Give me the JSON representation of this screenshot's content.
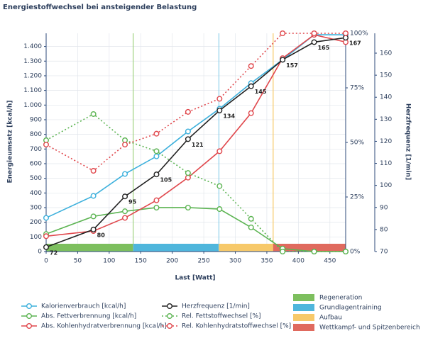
{
  "chart_data": {
    "type": "line",
    "title": "Energiestoffwechsel bei ansteigender Belastung",
    "x_label": "Last [Watt]",
    "y_label": "Energieumsatz [kcal/h]",
    "y3_label": "Herzfrequenz [1/min]",
    "x": [
      0,
      75,
      125,
      175,
      225,
      275,
      325,
      375,
      425,
      475
    ],
    "xlim": [
      0,
      475
    ],
    "xticks": [
      0,
      50,
      100,
      150,
      200,
      250,
      300,
      350,
      400,
      450
    ],
    "ylim": [
      0,
      1490
    ],
    "yticks": [
      0,
      100,
      200,
      300,
      400,
      500,
      600,
      700,
      800,
      900,
      {
        "value": 1000,
        "label": "1.000"
      },
      {
        "value": 1100,
        "label": "1.100"
      },
      {
        "value": 1200,
        "label": "1.200"
      },
      {
        "value": 1300,
        "label": "1.300"
      },
      {
        "value": 1400,
        "label": "1.400"
      }
    ],
    "y2lim": [
      0,
      100
    ],
    "y2ticks": [
      {
        "value": 0,
        "label": "0%"
      },
      {
        "value": 25,
        "label": "25%"
      },
      {
        "value": 50,
        "label": "50%"
      },
      {
        "value": 75,
        "label": "75%"
      },
      {
        "value": 100,
        "label": "100%"
      }
    ],
    "y3lim": [
      70,
      169
    ],
    "y3ticks": [
      70,
      80,
      90,
      100,
      110,
      120,
      130,
      140,
      150,
      160
    ],
    "series": [
      {
        "name": "Kalorienverbrauch [kcal/h]",
        "color": "#3cb0dc",
        "values": [
          230,
          380,
          530,
          650,
          820,
          975,
          1150,
          1310,
          1480,
          1480
        ]
      },
      {
        "name": "Abs. Fettverbrennung [kcal/h]",
        "color": "#5cb452",
        "values": [
          120,
          240,
          275,
          300,
          300,
          290,
          165,
          20,
          0,
          0
        ]
      },
      {
        "name": "Abs. Kohlenhydratverbrennung [kcal/h]",
        "color": "#e0474c",
        "values": [
          105,
          140,
          230,
          350,
          505,
          685,
          945,
          1320,
          1480,
          1430
        ]
      },
      {
        "name": "Herzfrequenz [1/min]",
        "color": "#222222",
        "axis": "y3",
        "labels": true,
        "values": [
          72,
          80,
          95,
          105,
          121,
          134,
          145,
          157,
          165,
          167
        ]
      },
      {
        "name": "Rel. Fettstoffwechsel [%]",
        "color": "#5cb452",
        "axis": "y2",
        "dashed": true,
        "values": [
          51,
          63,
          51,
          46,
          36,
          30,
          15,
          0,
          0,
          0
        ]
      },
      {
        "name": "Rel. Kohlenhydratstoffwechsel [%]",
        "color": "#e0474c",
        "axis": "y2",
        "dashed": true,
        "values": [
          49,
          37,
          49,
          54,
          64,
          70,
          85,
          100,
          100,
          100
        ]
      }
    ],
    "zones": [
      {
        "name": "Regeneration",
        "color": "#7dbf5e",
        "line": "#9fd27f",
        "from": 0,
        "to": 138
      },
      {
        "name": "Grundlagentraining",
        "color": "#4fb6dc",
        "line": "#8fd0ea",
        "from": 138,
        "to": 274
      },
      {
        "name": "Aufbau",
        "color": "#f7c96a",
        "line": "#f7c96a",
        "from": 274,
        "to": 360
      },
      {
        "name": "Wettkampf- und Spitzenbereich",
        "color": "#e06a5e",
        "line": "#e06a5e",
        "from": 360,
        "to": 475
      }
    ]
  }
}
